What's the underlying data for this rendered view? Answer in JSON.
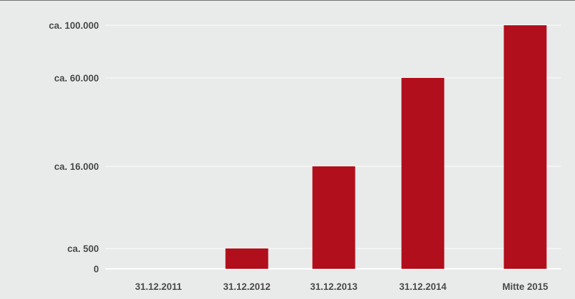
{
  "chart_data": {
    "type": "bar",
    "categories": [
      "31.12.2011",
      "31.12.2012",
      "31.12.2013",
      "31.12.2014",
      "Mitte 2015"
    ],
    "values": [
      0,
      500,
      16000,
      60000,
      100000
    ],
    "y_tick_labels": [
      {
        "value": 0,
        "label": "0"
      },
      {
        "value": 500,
        "label": "ca. 500"
      },
      {
        "value": 16000,
        "label": "ca. 16.000"
      },
      {
        "value": 60000,
        "label": "ca. 60.000"
      },
      {
        "value": 100000,
        "label": "ca. 100.000"
      }
    ],
    "title": "",
    "xlabel": "",
    "ylabel": "",
    "grid": true,
    "legend": "none",
    "bar_color": "#b10f1b",
    "axis_note": "y axis is non-linear; tick labels placed at category heights"
  }
}
